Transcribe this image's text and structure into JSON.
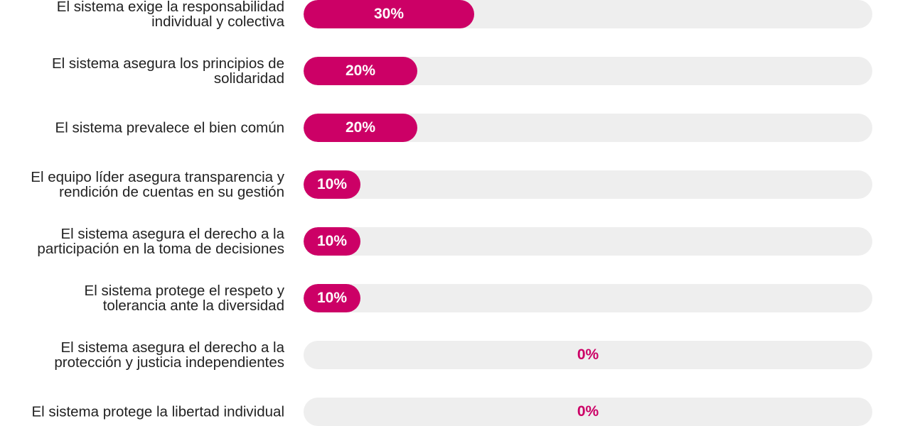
{
  "chart_data": {
    "type": "bar",
    "orientation": "horizontal",
    "categories": [
      "El sistema exige la responsabilidad individual y colectiva",
      "El sistema asegura los principios de solidaridad",
      "El sistema prevalece el bien común",
      "El equipo líder asegura transparencia y rendición de cuentas en su gestión",
      "El sistema asegura el derecho a la participación en la toma de decisiones",
      "El sistema protege el respeto y tolerancia ante la diversidad",
      "El sistema asegura el derecho a la protección y justicia independientes",
      "El sistema protege la libertad individual"
    ],
    "values": [
      30,
      20,
      20,
      10,
      10,
      10,
      0,
      0
    ],
    "value_labels": [
      "30%",
      "20%",
      "20%",
      "10%",
      "10%",
      "10%",
      "0%",
      "0%"
    ],
    "xlim": [
      0,
      100
    ],
    "colors": {
      "fill": "#cc0066",
      "track": "#eeeeee",
      "label_on_fill": "#ffffff",
      "label_empty": "#cc0066"
    }
  }
}
